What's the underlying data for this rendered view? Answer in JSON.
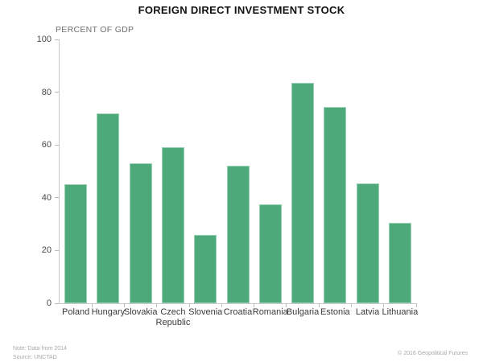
{
  "header": {
    "title": "FOREIGN DIRECT INVESTMENT STOCK"
  },
  "chart_data": {
    "type": "bar",
    "title": "FOREIGN DIRECT INVESTMENT STOCK",
    "ylabel": "PERCENT OF GDP",
    "xlabel": "",
    "categories": [
      "Poland",
      "Hungary",
      "Slovakia",
      "Czech Republic",
      "Slovenia",
      "Croatia",
      "Romania",
      "Bulgaria",
      "Estonia",
      "Latvia",
      "Lithuania"
    ],
    "values": [
      45,
      72,
      53,
      59,
      26,
      52,
      37.5,
      83.5,
      74.5,
      45.5,
      30.5
    ],
    "ylim": [
      0,
      100
    ],
    "yticks": [
      0,
      20,
      40,
      60,
      80,
      100
    ],
    "grid": false,
    "legend": false,
    "colors": {
      "bar_fill": "#4DA87A",
      "bar_border": "#9AD0B4",
      "axis_line": "#c9c9c9",
      "tick_mark": "#bdbdbd"
    }
  },
  "footer": {
    "note": "Note: Data from 2014",
    "source": "Source: UNCTAD",
    "copyright": "© 2016 Geopolitical Futures"
  }
}
